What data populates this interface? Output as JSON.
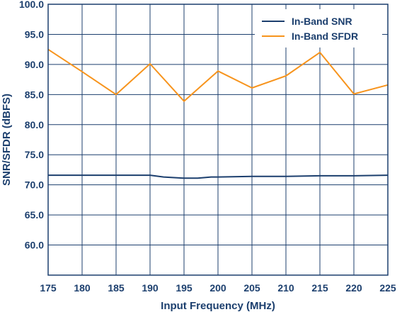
{
  "chart_data": {
    "type": "line",
    "title": "",
    "xlabel": "Input Frequency (MHz)",
    "ylabel": "SNR/SFDR (dBFS)",
    "xlim": [
      175,
      225
    ],
    "ylim": [
      55,
      100
    ],
    "x_ticks": [
      "175",
      "180",
      "185",
      "190",
      "195",
      "200",
      "205",
      "210",
      "215",
      "220",
      "225"
    ],
    "y_ticks": [
      "100.0",
      "95.0",
      "90.0",
      "85.0",
      "80.0",
      "75.0",
      "70.0",
      "65.0",
      "60.0"
    ],
    "grid": true,
    "legend_position": "top-right",
    "series": [
      {
        "name": "In-Band SNR",
        "color": "#1c3f6e",
        "points": [
          [
            175,
            71.6
          ],
          [
            180,
            71.6
          ],
          [
            185,
            71.6
          ],
          [
            190,
            71.6
          ],
          [
            192,
            71.3
          ],
          [
            195,
            71.1
          ],
          [
            197,
            71.1
          ],
          [
            199,
            71.3
          ],
          [
            200,
            71.3
          ],
          [
            205,
            71.4
          ],
          [
            210,
            71.4
          ],
          [
            215,
            71.5
          ],
          [
            220,
            71.5
          ],
          [
            225,
            71.6
          ]
        ]
      },
      {
        "name": "In-Band SFDR",
        "color": "#f7941d",
        "points": [
          [
            175,
            92.5
          ],
          [
            180,
            88.8
          ],
          [
            185,
            85.0
          ],
          [
            190,
            90.1
          ],
          [
            195,
            83.9
          ],
          [
            200,
            88.9
          ],
          [
            205,
            86.1
          ],
          [
            210,
            88.1
          ],
          [
            215,
            92.0
          ],
          [
            220,
            85.1
          ],
          [
            225,
            86.6
          ]
        ]
      }
    ]
  }
}
